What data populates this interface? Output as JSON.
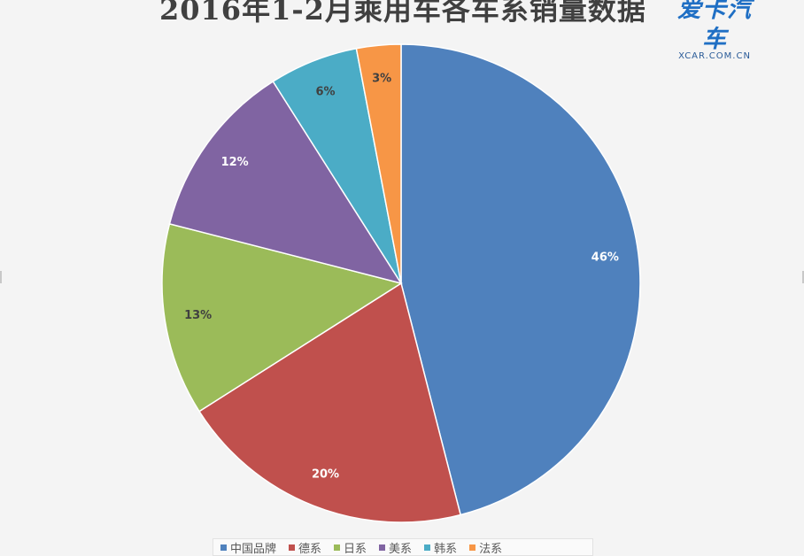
{
  "logo": {
    "text_cn": "爱卡汽车",
    "text_en": "XCAR.COM.CN"
  },
  "chart_data": {
    "type": "pie",
    "title": "2016年1-2月乘用车各车系销量数据",
    "start_angle_deg": 0,
    "direction": "clockwise",
    "legend_position": "bottom",
    "slices": [
      {
        "name": "中国品牌",
        "value": 46,
        "label": "46%",
        "color": "#4f81bd",
        "label_color": "#ffffff"
      },
      {
        "name": "德系",
        "value": 20,
        "label": "20%",
        "color": "#c0504d",
        "label_color": "#ffffff"
      },
      {
        "name": "日系",
        "value": 13,
        "label": "13%",
        "color": "#9bbb59",
        "label_color": "#404040"
      },
      {
        "name": "美系",
        "value": 12,
        "label": "12%",
        "color": "#8064a2",
        "label_color": "#ffffff"
      },
      {
        "name": "韩系",
        "value": 6,
        "label": "6%",
        "color": "#4bacc6",
        "label_color": "#404040"
      },
      {
        "name": "法系",
        "value": 3,
        "label": "3%",
        "color": "#f79646",
        "label_color": "#404040"
      }
    ]
  }
}
